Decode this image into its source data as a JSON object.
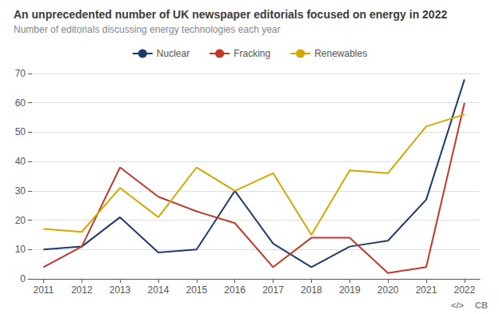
{
  "chart_data": {
    "type": "line",
    "title": "An unprecedented number of UK newspaper editorials focused on energy in 2022",
    "subtitle": "Number of editorials discussing energy technologies each year",
    "x": [
      2011,
      2012,
      2013,
      2014,
      2015,
      2016,
      2017,
      2018,
      2019,
      2020,
      2021,
      2022
    ],
    "series": [
      {
        "name": "Nuclear",
        "color": "#1f3d6b",
        "values": [
          10,
          11,
          21,
          9,
          10,
          30,
          12,
          4,
          11,
          13,
          27,
          68
        ]
      },
      {
        "name": "Fracking",
        "color": "#c0392b",
        "values": [
          4,
          11,
          38,
          28,
          23,
          19,
          4,
          14,
          14,
          2,
          4,
          60
        ]
      },
      {
        "name": "Renewables",
        "color": "#d4a800",
        "values": [
          17,
          16,
          31,
          21,
          38,
          30,
          36,
          15,
          37,
          36,
          52,
          56
        ]
      }
    ],
    "xlim": [
      2010.7,
      2022.4
    ],
    "xticks": [
      2011,
      2012,
      2013,
      2014,
      2015,
      2016,
      2017,
      2018,
      2019,
      2020,
      2021,
      2022
    ],
    "ylim": [
      0,
      70
    ],
    "yticks": [
      0,
      10,
      20,
      30,
      40,
      50,
      60,
      70
    ],
    "grid": true,
    "legend": "top",
    "annotations": [
      "</>",
      "CB"
    ]
  }
}
